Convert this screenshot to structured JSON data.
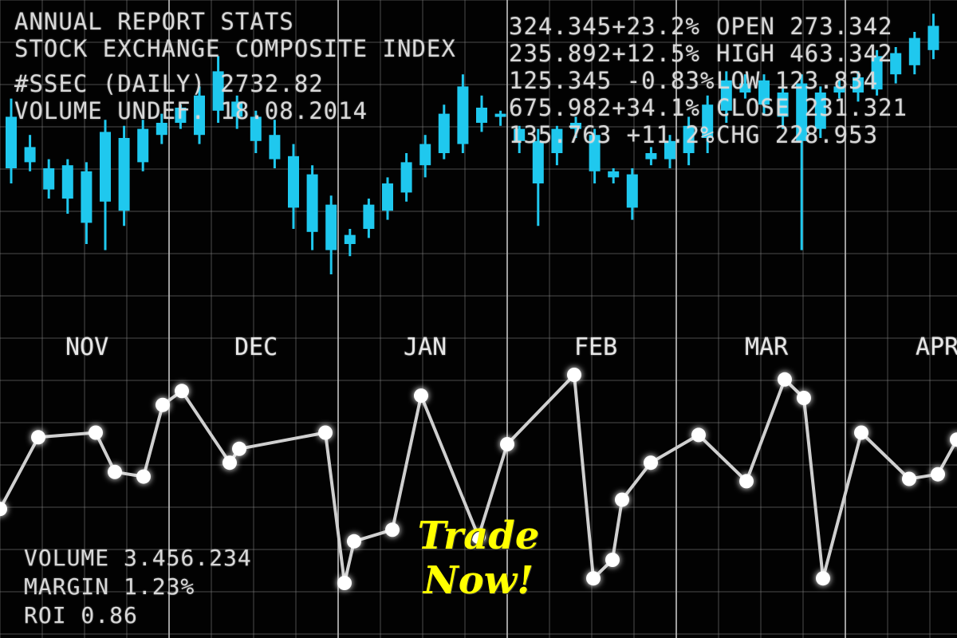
{
  "header": {
    "title": "ANNUAL REPORT STATS",
    "subtitle": "STOCK EXCHANGE COMPOSITE INDEX",
    "ticker_line": "#SSEC (DAILY) 2732.82",
    "volume_line": "VOLUME UNDEF. 18.08.2014"
  },
  "quotes": [
    "324.345+23.2%",
    "235.892+12.5%",
    "125.345 -0.83%",
    "675.982+34.1%",
    "135.763 +11.2%"
  ],
  "ohlc": {
    "open": "OPEN 273.342",
    "high": "HIGH 463.342",
    "low": "LOW 123.834",
    "close": "CLOSE 231.321",
    "chg": "CHG 228.953"
  },
  "footer_stats": {
    "volume": "VOLUME 3.456.234",
    "margin": "MARGIN 1.23%",
    "roi": "ROI 0.86"
  },
  "banner": {
    "line1": "Trade",
    "line2": "Now!"
  },
  "colors": {
    "candle": "#1fc8ee",
    "grid": "#8a8a8a",
    "line": "#cfcfcf",
    "text": "#d8d8d8",
    "banner": "#ffff00"
  },
  "chart_data": [
    {
      "type": "candlestick",
      "title": "ANNUAL REPORT STATS",
      "months": [
        "NOV",
        "DEC",
        "JAN",
        "FEB",
        "MAR",
        "APR"
      ],
      "ylim": [
        0,
        100
      ],
      "grid": true,
      "candles": [
        {
          "o": 55,
          "c": 72,
          "h": 78,
          "l": 50
        },
        {
          "o": 57,
          "c": 62,
          "h": 66,
          "l": 54
        },
        {
          "o": 48,
          "c": 55,
          "h": 58,
          "l": 45
        },
        {
          "o": 56,
          "c": 45,
          "h": 58,
          "l": 40
        },
        {
          "o": 54,
          "c": 37,
          "h": 57,
          "l": 30
        },
        {
          "o": 44,
          "c": 67,
          "h": 71,
          "l": 28
        },
        {
          "o": 41,
          "c": 65,
          "h": 69,
          "l": 36
        },
        {
          "o": 57,
          "c": 68,
          "h": 71,
          "l": 54
        },
        {
          "o": 66,
          "c": 70,
          "h": 73,
          "l": 63
        },
        {
          "o": 70,
          "c": 75,
          "h": 76,
          "l": 68
        },
        {
          "o": 66,
          "c": 79,
          "h": 82,
          "l": 63
        },
        {
          "o": 74,
          "c": 87,
          "h": 92,
          "l": 70
        },
        {
          "o": 72,
          "c": 77,
          "h": 79,
          "l": 68
        },
        {
          "o": 64,
          "c": 72,
          "h": 74,
          "l": 60
        },
        {
          "o": 58,
          "c": 66,
          "h": 71,
          "l": 55
        },
        {
          "o": 42,
          "c": 59,
          "h": 63,
          "l": 35
        },
        {
          "o": 34,
          "c": 53,
          "h": 56,
          "l": 28
        },
        {
          "o": 28,
          "c": 43,
          "h": 46,
          "l": 20
        },
        {
          "o": 33,
          "c": 30,
          "h": 35,
          "l": 26
        },
        {
          "o": 35,
          "c": 43,
          "h": 45,
          "l": 32
        },
        {
          "o": 41,
          "c": 50,
          "h": 52,
          "l": 38
        },
        {
          "o": 47,
          "c": 57,
          "h": 60,
          "l": 44
        },
        {
          "o": 56,
          "c": 63,
          "h": 66,
          "l": 52
        },
        {
          "o": 60,
          "c": 73,
          "h": 76,
          "l": 58
        },
        {
          "o": 63,
          "c": 82,
          "h": 86,
          "l": 60
        },
        {
          "o": 70,
          "c": 75,
          "h": 79,
          "l": 67
        },
        {
          "o": 73,
          "c": 72,
          "h": 74,
          "l": 69
        },
        {
          "o": 68,
          "c": 64,
          "h": 69,
          "l": 60
        },
        {
          "o": 64,
          "c": 50,
          "h": 68,
          "l": 36
        },
        {
          "o": 68,
          "c": 60,
          "h": 69,
          "l": 56
        },
        {
          "o": 70,
          "c": 68,
          "h": 72,
          "l": 65
        },
        {
          "o": 66,
          "c": 54,
          "h": 68,
          "l": 50
        },
        {
          "o": 52,
          "c": 54,
          "h": 55,
          "l": 50
        },
        {
          "o": 53,
          "c": 42,
          "h": 55,
          "l": 38
        },
        {
          "o": 58,
          "c": 60,
          "h": 62,
          "l": 56
        },
        {
          "o": 58,
          "c": 64,
          "h": 66,
          "l": 55
        },
        {
          "o": 60,
          "c": 69,
          "h": 72,
          "l": 56
        },
        {
          "o": 65,
          "c": 76,
          "h": 79,
          "l": 60
        },
        {
          "o": 74,
          "c": 84,
          "h": 87,
          "l": 70
        },
        {
          "o": 80,
          "c": 83,
          "h": 86,
          "l": 78
        },
        {
          "o": 76,
          "c": 84,
          "h": 86,
          "l": 73
        },
        {
          "o": 80,
          "c": 72,
          "h": 82,
          "l": 68
        },
        {
          "o": 64,
          "c": 83,
          "h": 86,
          "l": 28
        },
        {
          "o": 68,
          "c": 80,
          "h": 82,
          "l": 65
        },
        {
          "o": 80,
          "c": 82,
          "h": 84,
          "l": 78
        },
        {
          "o": 80,
          "c": 85,
          "h": 87,
          "l": 77
        },
        {
          "o": 81,
          "c": 92,
          "h": 94,
          "l": 79
        },
        {
          "o": 86,
          "c": 93,
          "h": 95,
          "l": 83
        },
        {
          "o": 89,
          "c": 98,
          "h": 100,
          "l": 86
        },
        {
          "o": 94,
          "c": 102,
          "h": 106,
          "l": 91
        }
      ]
    },
    {
      "type": "line",
      "ylim": [
        0,
        100
      ],
      "grid": true,
      "points": [
        {
          "x": 0,
          "y": 42
        },
        {
          "x": 4,
          "y": 73
        },
        {
          "x": 10,
          "y": 75
        },
        {
          "x": 12,
          "y": 58
        },
        {
          "x": 15,
          "y": 56
        },
        {
          "x": 17,
          "y": 87
        },
        {
          "x": 19,
          "y": 93
        },
        {
          "x": 24,
          "y": 62
        },
        {
          "x": 25,
          "y": 68
        },
        {
          "x": 34,
          "y": 75
        },
        {
          "x": 36,
          "y": 10
        },
        {
          "x": 37,
          "y": 28
        },
        {
          "x": 41,
          "y": 33
        },
        {
          "x": 44,
          "y": 91
        },
        {
          "x": 50,
          "y": 30
        },
        {
          "x": 53,
          "y": 70
        },
        {
          "x": 60,
          "y": 100
        },
        {
          "x": 62,
          "y": 12
        },
        {
          "x": 64,
          "y": 20
        },
        {
          "x": 65,
          "y": 46
        },
        {
          "x": 68,
          "y": 62
        },
        {
          "x": 73,
          "y": 74
        },
        {
          "x": 78,
          "y": 54
        },
        {
          "x": 82,
          "y": 98
        },
        {
          "x": 84,
          "y": 90
        },
        {
          "x": 86,
          "y": 12
        },
        {
          "x": 90,
          "y": 75
        },
        {
          "x": 95,
          "y": 55
        },
        {
          "x": 98,
          "y": 57
        },
        {
          "x": 100,
          "y": 72
        }
      ]
    }
  ]
}
